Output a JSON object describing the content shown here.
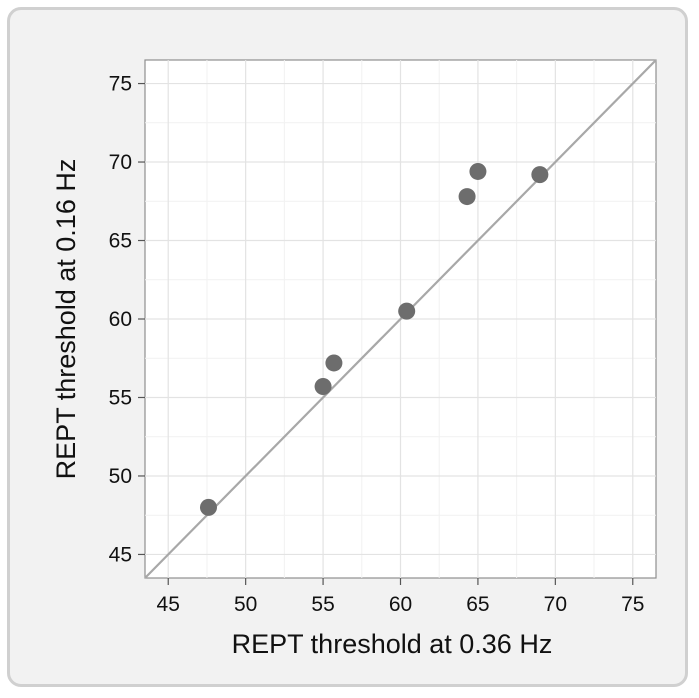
{
  "chart_data": {
    "type": "scatter",
    "xlabel": "REPT threshold at 0.36 Hz",
    "ylabel": "REPT threshold at 0.16 Hz",
    "xlim": [
      43.5,
      76.5
    ],
    "ylim": [
      43.5,
      76.5
    ],
    "xticks": [
      45,
      50,
      55,
      60,
      65,
      70,
      75
    ],
    "yticks": [
      45,
      50,
      55,
      60,
      65,
      70,
      75
    ],
    "grid": true,
    "identity_line": true,
    "points": [
      {
        "x": 47.6,
        "y": 48.0
      },
      {
        "x": 55.0,
        "y": 55.7
      },
      {
        "x": 55.7,
        "y": 57.2
      },
      {
        "x": 60.4,
        "y": 60.5
      },
      {
        "x": 64.3,
        "y": 67.8
      },
      {
        "x": 65.0,
        "y": 69.4
      },
      {
        "x": 69.0,
        "y": 69.2
      }
    ],
    "colors": {
      "point": "#6d6d6d",
      "identity_line": "#a8a8a8",
      "plot_bg": "#ffffff",
      "panel_bg": "#f2f2f2"
    }
  }
}
